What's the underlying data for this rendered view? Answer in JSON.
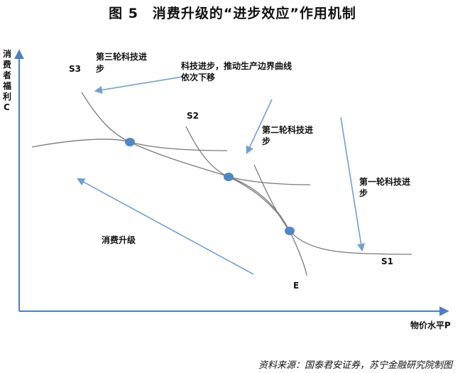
{
  "title": "图 5　消费升级的“进步效应”作用机制",
  "source": "资料来源：国泰君安证券，苏宁金融研究院制图",
  "axes": {
    "y_label": "消费者福利C",
    "x_label": "物价水平P"
  },
  "curves": {
    "s1": "S1",
    "s2": "S2",
    "s3": "S3",
    "e": "E"
  },
  "annotations": {
    "third_round": [
      "第三轮科技进",
      "步"
    ],
    "tech_progress": [
      "科技进步，推动生产边界曲线",
      "依次下移"
    ],
    "second_round": [
      "第二轮科技进",
      "步"
    ],
    "first_round": [
      "第一轮科技进",
      "步"
    ],
    "consumption_upgrade": "消费升级"
  },
  "colors": {
    "axis": "#4f7fc0",
    "arrow": "#6f9fd3",
    "curve": "#7a7a7a",
    "point": "#4f86c6"
  }
}
